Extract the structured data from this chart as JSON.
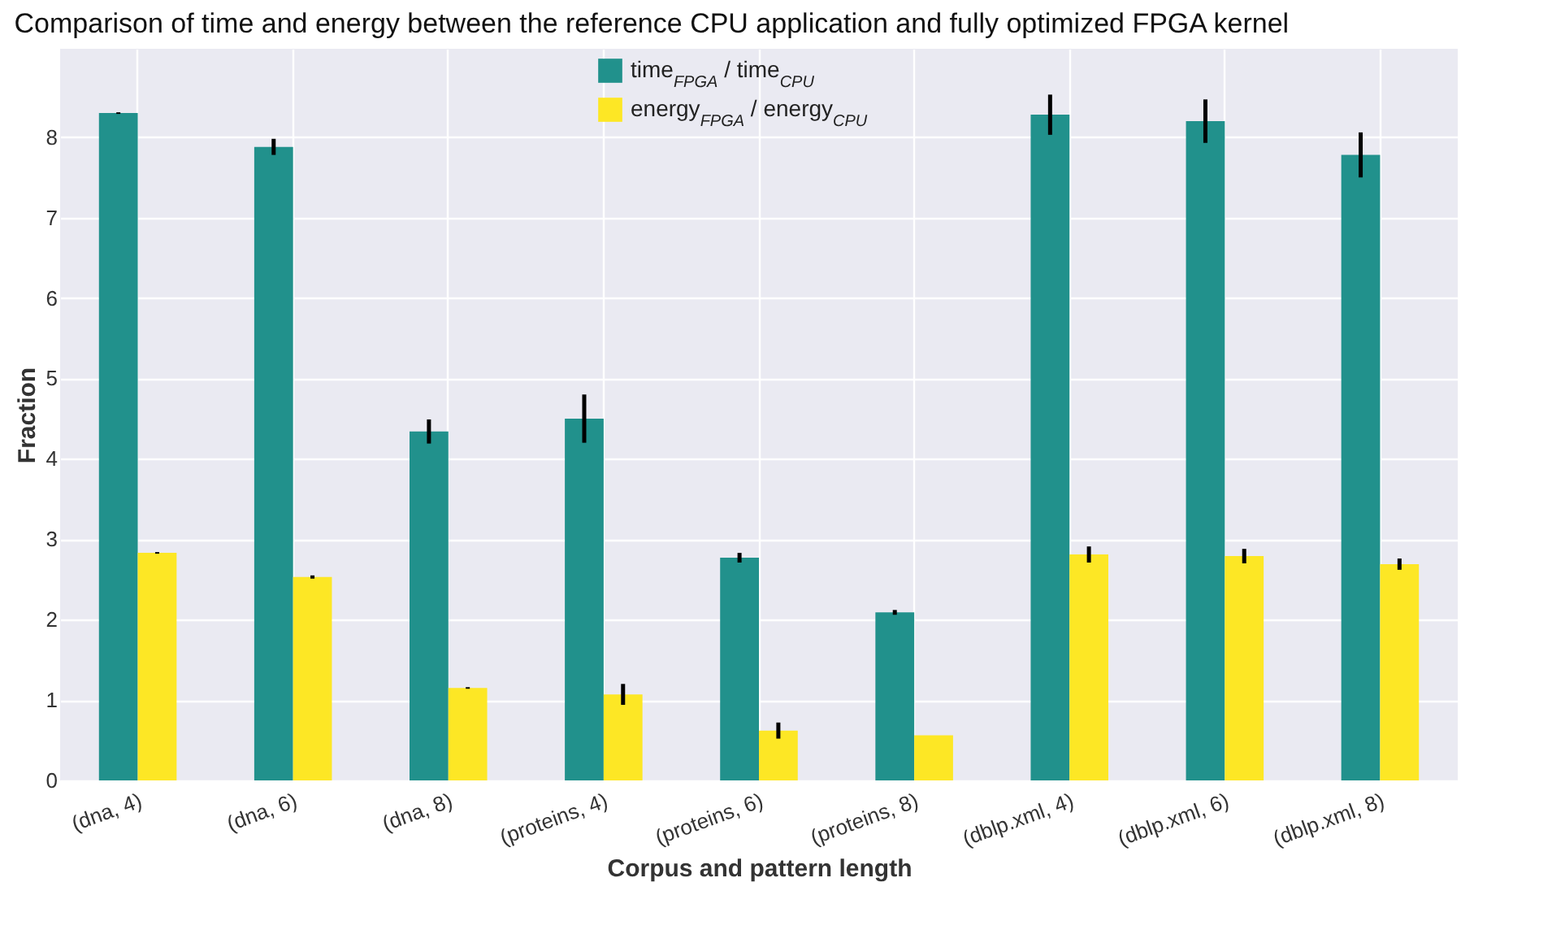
{
  "chart_data": {
    "type": "bar",
    "title": "Comparison of time and energy between the reference CPU application and fully optimized FPGA kernel",
    "xlabel": "Corpus and pattern length",
    "ylabel": "Fraction",
    "categories": [
      "(dna, 4)",
      "(dna, 6)",
      "(dna, 8)",
      "(proteins, 4)",
      "(proteins, 6)",
      "(proteins, 8)",
      "(dblp.xml, 4)",
      "(dblp.xml, 6)",
      "(dblp.xml, 8)"
    ],
    "series": [
      {
        "name": "time$_{FPGA}$ / time$_{CPU}$",
        "color": "#21918c",
        "values": [
          8.3,
          7.88,
          4.34,
          4.5,
          2.77,
          2.09,
          8.28,
          8.2,
          7.78
        ],
        "errors": [
          0.01,
          0.1,
          0.15,
          0.3,
          0.06,
          0.03,
          0.25,
          0.27,
          0.28
        ]
      },
      {
        "name": "energy$_{FPGA}$ / energy$_{CPU}$",
        "color": "#fde725",
        "values": [
          2.83,
          2.53,
          1.15,
          1.07,
          0.62,
          0.56,
          2.81,
          2.79,
          2.69
        ],
        "errors": [
          0.01,
          0.02,
          0.01,
          0.13,
          0.1,
          null,
          0.1,
          0.09,
          0.07
        ]
      }
    ],
    "ylim": [
      0,
      9.1
    ],
    "yticks": [
      0,
      1,
      2,
      3,
      4,
      5,
      6,
      7,
      8
    ],
    "grid": true,
    "legend": "top"
  }
}
